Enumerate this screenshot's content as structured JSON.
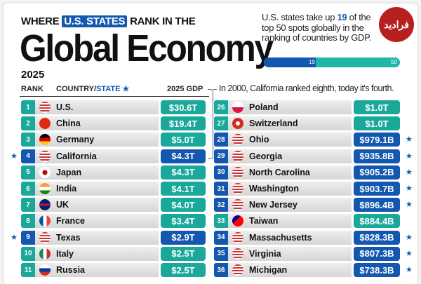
{
  "header": {
    "kicker_before": "WHERE",
    "kicker_highlight": "U.S. STATES",
    "kicker_after": "RANK IN THE",
    "title": "Global Economy",
    "year": "2025"
  },
  "blurb": {
    "before": "U.S. states take up",
    "count": "19",
    "after": "of the top 50 spots globally in the ranking of countries by GDP."
  },
  "progress": {
    "value": 19,
    "total": 50,
    "label_value": "19",
    "label_total": "50"
  },
  "logo": {
    "text": "فرادید"
  },
  "columns": {
    "rank": "RANK",
    "country": "COUNTRY/",
    "state": "STATE",
    "star": "★",
    "gdp": "2025 GDP"
  },
  "note": "In 2000, California ranked eighth, today it's fourth.",
  "colors": {
    "country": "#1aa89a",
    "state": "#1457b0"
  },
  "chart_data": {
    "type": "table",
    "title": "Where U.S. States Rank in the Global Economy 2025",
    "columns": [
      "Rank",
      "Country/State",
      "2025 GDP"
    ],
    "left": [
      {
        "rank": "1",
        "name": "U.S.",
        "gdp": "$30.6T",
        "state": false,
        "flag": "us"
      },
      {
        "rank": "2",
        "name": "China",
        "gdp": "$19.4T",
        "state": false,
        "flag": "cn"
      },
      {
        "rank": "3",
        "name": "Germany",
        "gdp": "$5.0T",
        "state": false,
        "flag": "de"
      },
      {
        "rank": "4",
        "name": "California",
        "gdp": "$4.3T",
        "state": true,
        "flag": "us"
      },
      {
        "rank": "5",
        "name": "Japan",
        "gdp": "$4.3T",
        "state": false,
        "flag": "jp"
      },
      {
        "rank": "6",
        "name": "India",
        "gdp": "$4.1T",
        "state": false,
        "flag": "in"
      },
      {
        "rank": "7",
        "name": "UK",
        "gdp": "$4.0T",
        "state": false,
        "flag": "uk"
      },
      {
        "rank": "8",
        "name": "France",
        "gdp": "$3.4T",
        "state": false,
        "flag": "fr"
      },
      {
        "rank": "9",
        "name": "Texas",
        "gdp": "$2.9T",
        "state": true,
        "flag": "us"
      },
      {
        "rank": "10",
        "name": "Italy",
        "gdp": "$2.5T",
        "state": false,
        "flag": "it"
      },
      {
        "rank": "11",
        "name": "Russia",
        "gdp": "$2.5T",
        "state": false,
        "flag": "ru"
      }
    ],
    "right": [
      {
        "rank": "26",
        "name": "Poland",
        "gdp": "$1.0T",
        "state": false,
        "flag": "pl"
      },
      {
        "rank": "27",
        "name": "Switzerland",
        "gdp": "$1.0T",
        "state": false,
        "flag": "ch"
      },
      {
        "rank": "28",
        "name": "Ohio",
        "gdp": "$979.1B",
        "state": true,
        "flag": "us"
      },
      {
        "rank": "29",
        "name": "Georgia",
        "gdp": "$935.8B",
        "state": true,
        "flag": "us"
      },
      {
        "rank": "30",
        "name": "North Carolina",
        "gdp": "$905.2B",
        "state": true,
        "flag": "us"
      },
      {
        "rank": "31",
        "name": "Washington",
        "gdp": "$903.7B",
        "state": true,
        "flag": "us"
      },
      {
        "rank": "32",
        "name": "New Jersey",
        "gdp": "$896.4B",
        "state": true,
        "flag": "us"
      },
      {
        "rank": "33",
        "name": "Taiwan",
        "gdp": "$884.4B",
        "state": false,
        "flag": "tw"
      },
      {
        "rank": "34",
        "name": "Massachusetts",
        "gdp": "$828.3B",
        "state": true,
        "flag": "us"
      },
      {
        "rank": "35",
        "name": "Virginia",
        "gdp": "$807.3B",
        "state": true,
        "flag": "us"
      },
      {
        "rank": "36",
        "name": "Michigan",
        "gdp": "$738.3B",
        "state": true,
        "flag": "us"
      }
    ]
  }
}
